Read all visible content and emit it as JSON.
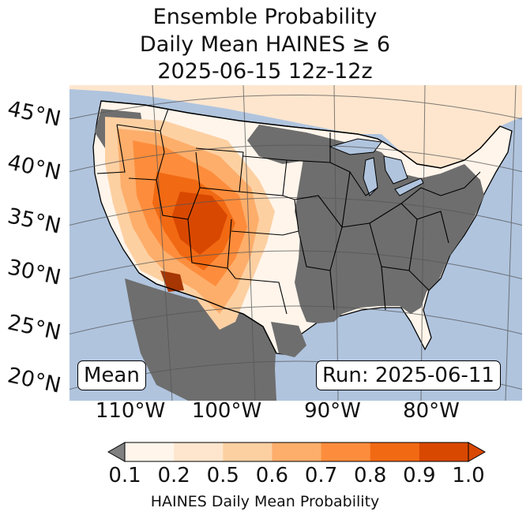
{
  "title": {
    "line1": "Ensemble Probability",
    "line2": "Daily Mean HAINES ≥ 6",
    "line3": "2025-06-15 12z-12z"
  },
  "map": {
    "lat_labels": [
      "45°N",
      "40°N",
      "35°N",
      "30°N",
      "25°N",
      "20°N"
    ],
    "lon_labels": [
      "110°W",
      "100°W",
      "90°W",
      "80°W"
    ],
    "stat_box": "Mean",
    "run_box": "Run: 2025-06-11",
    "colors": {
      "ocean": "#b0c4de",
      "no_data": "#6e6e6e",
      "border": "#000000"
    }
  },
  "colorbar": {
    "title": "HAINES Daily Mean Probability",
    "ticks": [
      "0.1",
      "0.2",
      "0.5",
      "0.6",
      "0.7",
      "0.8",
      "0.9",
      "1.0"
    ],
    "bins": [
      "#fff5eb",
      "#fee6ce",
      "#fdd0a2",
      "#fdae6b",
      "#fd8d3c",
      "#f16913",
      "#d94801",
      "#a63603"
    ],
    "under_color": "#808080",
    "over_color": "#7f2704"
  }
}
